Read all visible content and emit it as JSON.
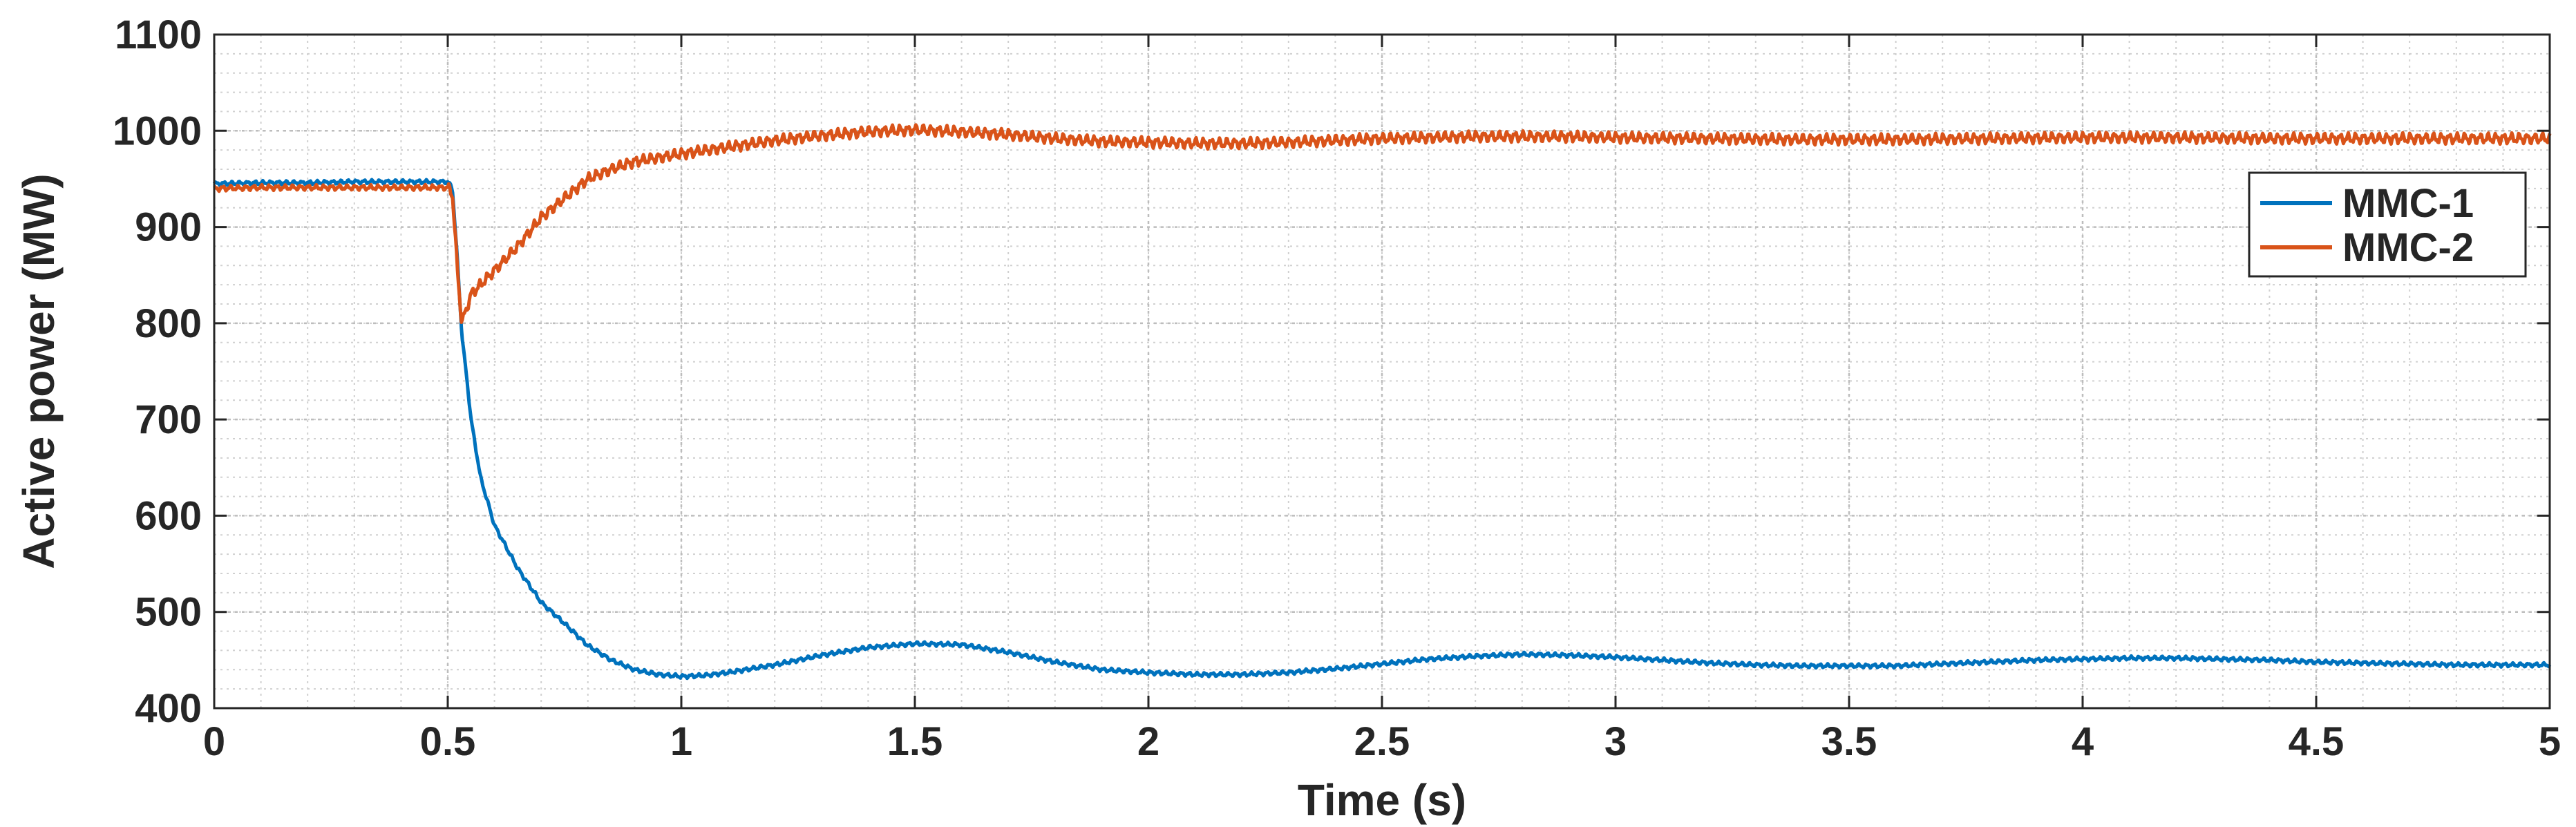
{
  "chart_data": {
    "type": "line",
    "title": "",
    "xlabel": "Time (s)",
    "ylabel": "Active power (MW)",
    "xlim": [
      0,
      5
    ],
    "ylim": [
      400,
      1100
    ],
    "xticks": [
      0,
      0.5,
      1,
      1.5,
      2,
      2.5,
      3,
      3.5,
      4,
      4.5,
      5
    ],
    "xtick_labels": [
      "0",
      "0.5",
      "1",
      "1.5",
      "2",
      "2.5",
      "3",
      "3.5",
      "4",
      "4.5",
      "5"
    ],
    "yticks": [
      400,
      500,
      600,
      700,
      800,
      900,
      1000,
      1100
    ],
    "ytick_labels": [
      "400",
      "500",
      "600",
      "700",
      "800",
      "900",
      "1000",
      "1100"
    ],
    "grid": true,
    "minor_grid": true,
    "legend_position": "right",
    "series": [
      {
        "name": "MMC-1",
        "color": "#0072BD",
        "x": [
          0,
          0.1,
          0.2,
          0.3,
          0.4,
          0.5,
          0.51,
          0.52,
          0.53,
          0.55,
          0.57,
          0.6,
          0.65,
          0.7,
          0.75,
          0.8,
          0.85,
          0.9,
          0.95,
          1.0,
          1.05,
          1.1,
          1.2,
          1.3,
          1.4,
          1.5,
          1.6,
          1.7,
          1.8,
          1.9,
          2.0,
          2.1,
          2.2,
          2.3,
          2.4,
          2.5,
          2.6,
          2.7,
          2.8,
          2.9,
          3.0,
          3.1,
          3.2,
          3.3,
          3.4,
          3.5,
          3.6,
          3.7,
          3.8,
          3.9,
          4.0,
          4.1,
          4.2,
          4.3,
          4.4,
          4.5,
          4.6,
          4.7,
          4.8,
          4.9,
          5.0
        ],
        "y": [
          945,
          946,
          946,
          947,
          947,
          947,
          940,
          870,
          790,
          700,
          640,
          590,
          545,
          510,
          488,
          465,
          450,
          440,
          435,
          433,
          434,
          437,
          445,
          455,
          463,
          467,
          466,
          458,
          448,
          440,
          437,
          435,
          435,
          437,
          441,
          446,
          451,
          454,
          456,
          455,
          453,
          450,
          447,
          445,
          444,
          444,
          444,
          446,
          448,
          450,
          451,
          452,
          452,
          451,
          450,
          448,
          447,
          446,
          445,
          445,
          445
        ]
      },
      {
        "name": "MMC-2",
        "color": "#D95319",
        "x": [
          0,
          0.1,
          0.2,
          0.3,
          0.4,
          0.5,
          0.51,
          0.52,
          0.53,
          0.55,
          0.57,
          0.6,
          0.65,
          0.7,
          0.75,
          0.8,
          0.85,
          0.9,
          0.95,
          1.0,
          1.1,
          1.2,
          1.3,
          1.4,
          1.5,
          1.6,
          1.7,
          1.8,
          1.9,
          2.0,
          2.1,
          2.2,
          2.3,
          2.4,
          2.5,
          2.6,
          2.7,
          2.8,
          2.9,
          3.0,
          3.2,
          3.4,
          3.6,
          3.8,
          4.0,
          4.2,
          4.4,
          4.6,
          4.8,
          5.0
        ],
        "y": [
          940,
          941,
          941,
          941,
          941,
          941,
          935,
          860,
          800,
          830,
          840,
          855,
          880,
          910,
          930,
          950,
          960,
          968,
          972,
          976,
          983,
          990,
          995,
          999,
          1001,
          999,
          996,
          992,
          989,
          988,
          987,
          987,
          988,
          990,
          992,
          993,
          994,
          994,
          994,
          993,
          992,
          991,
          991,
          992,
          993,
          993,
          992,
          992,
          992,
          992
        ]
      }
    ]
  }
}
